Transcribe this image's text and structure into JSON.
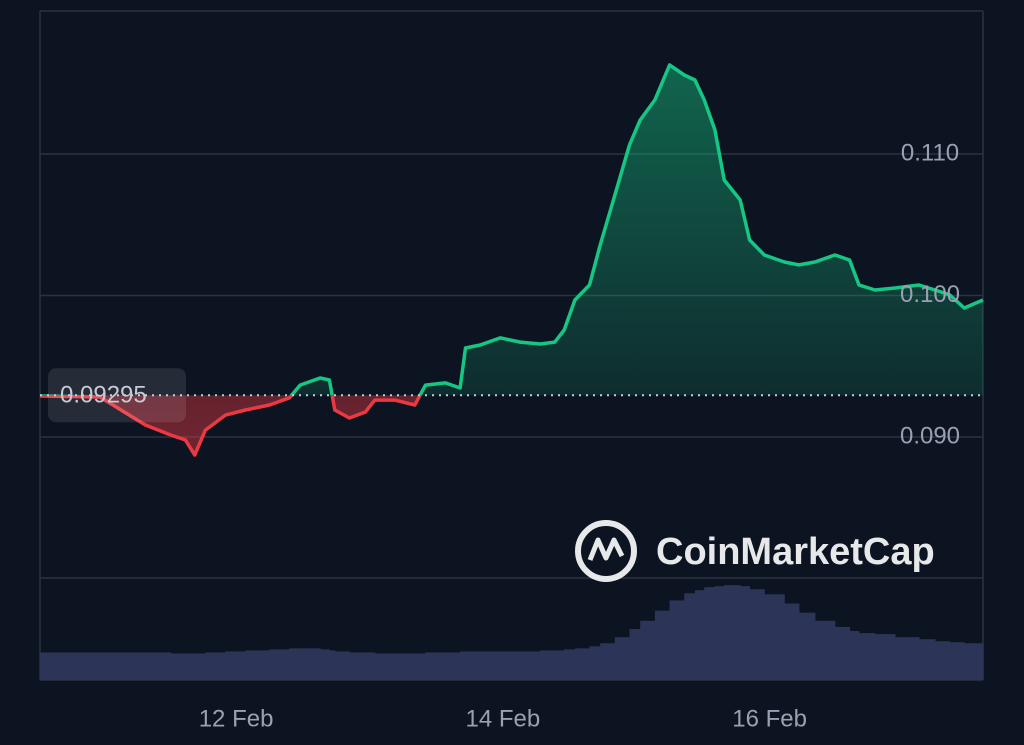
{
  "chart_data": {
    "type": "line",
    "x": [
      10.53,
      10.98,
      11.32,
      11.51,
      11.62,
      11.69,
      11.77,
      11.92,
      12.07,
      12.25,
      12.4,
      12.48,
      12.63,
      12.7,
      12.74,
      12.85,
      12.97,
      13.04,
      13.19,
      13.34,
      13.42,
      13.57,
      13.68,
      13.72,
      13.83,
      13.98,
      14.13,
      14.28,
      14.39,
      14.46,
      14.54,
      14.65,
      14.73,
      14.84,
      14.95,
      15.03,
      15.14,
      15.25,
      15.36,
      15.44,
      15.51,
      15.59,
      15.66,
      15.78,
      15.85,
      15.96,
      16.11,
      16.22,
      16.34,
      16.49,
      16.6,
      16.67,
      16.79,
      16.94,
      17.12,
      17.24,
      17.35,
      17.46,
      17.6
    ],
    "series": [
      {
        "color": "#16c784",
        "negative_color": "#ea3943",
        "values": [
          0.0929,
          0.09283,
          0.09085,
          0.09014,
          0.08979,
          0.08873,
          0.09049,
          0.09155,
          0.09191,
          0.09226,
          0.09276,
          0.09367,
          0.09417,
          0.09403,
          0.09191,
          0.09134,
          0.09177,
          0.09261,
          0.09261,
          0.09226,
          0.09367,
          0.09382,
          0.09346,
          0.09629,
          0.0965,
          0.097,
          0.09671,
          0.09657,
          0.09671,
          0.09756,
          0.09968,
          0.10074,
          0.10357,
          0.1071,
          0.11064,
          0.1124,
          0.11382,
          0.11629,
          0.11558,
          0.11523,
          0.11382,
          0.1117,
          0.10816,
          0.10675,
          0.10392,
          0.10286,
          0.10237,
          0.10216,
          0.10237,
          0.10286,
          0.10251,
          0.10074,
          0.10039,
          0.10053,
          0.10074,
          0.10039,
          0.10004,
          0.09912,
          0.09968
        ]
      }
    ],
    "baseline": 0.09295,
    "xlim": [
      10.53,
      17.6
    ],
    "xticks": [
      {
        "value": 12,
        "label": "12 Feb"
      },
      {
        "value": 14,
        "label": "14 Feb"
      },
      {
        "value": 16,
        "label": "16 Feb"
      }
    ],
    "ylim": [
      0.08,
      0.12
    ],
    "yticks": [
      {
        "value": 0.09,
        "label": "0.090"
      },
      {
        "value": 0.1,
        "label": "0.100"
      },
      {
        "value": 0.11,
        "label": "0.110"
      }
    ],
    "grid": true,
    "volume": {
      "color": "#2c3558",
      "ylim": [
        0,
        100
      ],
      "values": [
        27,
        27,
        27,
        26,
        26,
        26,
        27,
        28,
        29,
        30,
        31,
        31,
        30,
        29,
        28,
        27,
        27,
        26,
        26,
        26,
        27,
        27,
        28,
        28,
        28,
        28,
        28,
        29,
        29,
        30,
        31,
        33,
        36,
        42,
        50,
        58,
        68,
        78,
        85,
        88,
        91,
        92,
        93,
        92,
        89,
        84,
        75,
        66,
        58,
        52,
        48,
        46,
        45,
        42,
        40,
        38,
        37,
        36,
        35
      ]
    },
    "watermark": "CoinMarketCap"
  }
}
